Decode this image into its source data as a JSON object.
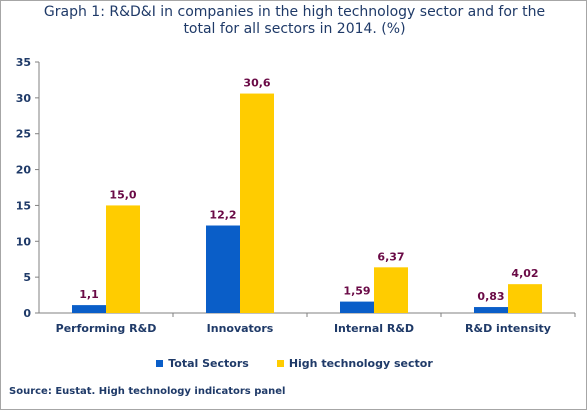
{
  "chart_data": {
    "type": "bar",
    "title_line1": "Graph 1: R&D&I in companies in the high technology sector and for the",
    "title_line2": "total for all sectors in 2014. (%)",
    "categories": [
      "Performing R&D",
      "Innovators",
      "Internal R&D",
      "R&D intensity"
    ],
    "series": [
      {
        "name": "Total Sectors",
        "color": "#0a5ec8",
        "values": [
          1.1,
          12.2,
          1.59,
          0.83
        ],
        "labels": [
          "1,1",
          "12,2",
          "1,59",
          "0,83"
        ]
      },
      {
        "name": "High technology sector",
        "color": "#ffcc00",
        "values": [
          15.0,
          30.6,
          6.37,
          4.02
        ],
        "labels": [
          "15,0",
          "30,6",
          "6,37",
          "4,02"
        ]
      }
    ],
    "ylim": [
      0,
      35
    ],
    "yticks": [
      0,
      5,
      10,
      15,
      20,
      25,
      30,
      35
    ],
    "grid": false,
    "legend_position": "bottom"
  },
  "source": "Source: Eustat. High technology indicators panel"
}
